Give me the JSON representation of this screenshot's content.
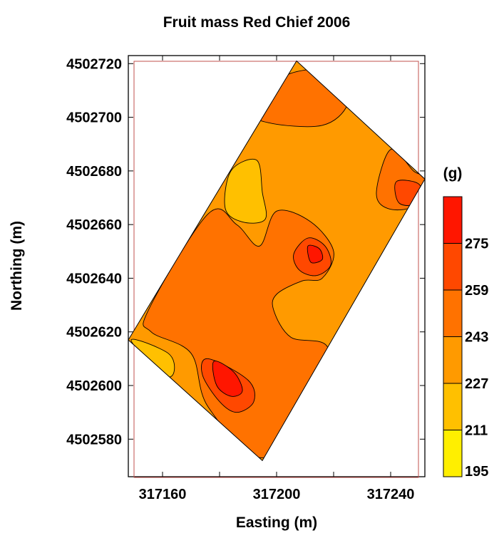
{
  "chart_data": {
    "type": "contour",
    "title": "Fruit mass Red Chief 2006",
    "xlabel": "Easting (m)",
    "ylabel": "Northing (m)",
    "xlim": [
      317148,
      317252
    ],
    "ylim": [
      4502566,
      4502723
    ],
    "x_ticks": [
      317160,
      317200,
      317240
    ],
    "y_ticks": [
      4502580,
      4502600,
      4502620,
      4502640,
      4502660,
      4502680,
      4502700,
      4502720
    ],
    "field_boundary": [
      [
        317207,
        4502721
      ],
      [
        317252,
        4502677
      ],
      [
        317195,
        4502572
      ],
      [
        317148,
        4502617
      ]
    ],
    "legend": {
      "title": "(g)",
      "levels": [
        195,
        211,
        227,
        243,
        259,
        275
      ],
      "colors": [
        "#ffef00",
        "#ffc000",
        "#ff9a00",
        "#ff7200",
        "#ff4800",
        "#ff1600"
      ]
    },
    "regions": [
      {
        "level_bin": "211-227",
        "outline": [
          [
            317207,
            4502721
          ],
          [
            317252,
            4502677
          ],
          [
            317195,
            4502572
          ],
          [
            317148,
            4502617
          ]
        ]
      },
      {
        "level_bin": "227-243",
        "outline": [
          [
            317204,
            4502716
          ],
          [
            317224,
            4502717
          ],
          [
            317225,
            4502705
          ],
          [
            317216,
            4502697
          ],
          [
            317197,
            4502698
          ],
          [
            317191,
            4502703
          ]
        ]
      },
      {
        "level_bin": "227-243",
        "outline": [
          [
            317240,
            4502688
          ],
          [
            317248,
            4502680
          ],
          [
            317252,
            4502677
          ],
          [
            317248,
            4502667
          ],
          [
            317239,
            4502666
          ],
          [
            317235,
            4502672
          ]
        ]
      },
      {
        "level_bin": "227-243",
        "outline": [
          [
            317155,
            4502628
          ],
          [
            317176,
            4502664
          ],
          [
            317186,
            4502660
          ],
          [
            317194,
            4502652
          ],
          [
            317200,
            4502665
          ],
          [
            317212,
            4502661
          ],
          [
            317220,
            4502650
          ],
          [
            317216,
            4502640
          ],
          [
            317209,
            4502639
          ],
          [
            317200,
            4502634
          ],
          [
            317199,
            4502628
          ],
          [
            317205,
            4502618
          ],
          [
            317218,
            4502614
          ],
          [
            317214,
            4502592
          ],
          [
            317195,
            4502573
          ],
          [
            317176,
            4502592
          ],
          [
            317170,
            4502612
          ],
          [
            317156,
            4502620
          ]
        ]
      },
      {
        "level_bin": "243-259",
        "outline": [
          [
            317211,
            4502655
          ],
          [
            317217,
            4502652
          ],
          [
            317219,
            4502645
          ],
          [
            317214,
            4502641
          ],
          [
            317208,
            4502643
          ],
          [
            317206,
            4502649
          ]
        ]
      },
      {
        "level_bin": "243-259",
        "outline": [
          [
            317176,
            4502610
          ],
          [
            317190,
            4502602
          ],
          [
            317192,
            4502594
          ],
          [
            317186,
            4502590
          ],
          [
            317180,
            4502594
          ],
          [
            317174,
            4502604
          ]
        ]
      },
      {
        "level_bin": "243-259",
        "outline": [
          [
            317242,
            4502676
          ],
          [
            317250,
            4502675
          ],
          [
            317250,
            4502668
          ],
          [
            317243,
            4502668
          ]
        ]
      },
      {
        "level_bin": "195-211",
        "outline": [
          [
            317184,
            4502680
          ],
          [
            317193,
            4502684
          ],
          [
            317195,
            4502672
          ],
          [
            317196,
            4502662
          ],
          [
            317188,
            4502661
          ],
          [
            317182,
            4502666
          ]
        ]
      },
      {
        "level_bin": "195-211",
        "outline": [
          [
            317149,
            4502617
          ],
          [
            317162,
            4502612
          ],
          [
            317164,
            4502605
          ],
          [
            317160,
            4502604
          ]
        ]
      },
      {
        "level_bin": "259-275",
        "outline": [
          [
            317211,
            4502652
          ],
          [
            317215,
            4502651
          ],
          [
            317216,
            4502647
          ],
          [
            317212,
            4502646
          ]
        ]
      },
      {
        "level_bin": "259-275",
        "outline": [
          [
            317178,
            4502609
          ],
          [
            317185,
            4502605
          ],
          [
            317188,
            4502598
          ],
          [
            317184,
            4502596
          ],
          [
            317179,
            4502600
          ]
        ]
      }
    ]
  }
}
